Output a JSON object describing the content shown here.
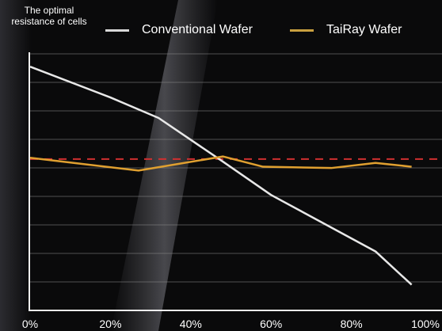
{
  "chart_data": {
    "type": "line",
    "ylabel_lines": [
      "The optimal",
      "resistance of cells"
    ],
    "xlabel": "",
    "x_ticks": [
      "0%",
      "20%",
      "40%",
      "60%",
      "80%",
      "100%"
    ],
    "xlim": [
      0,
      100
    ],
    "ylim": [
      0,
      10
    ],
    "grid": true,
    "legend": "top",
    "series": [
      {
        "name": "Conventional Wafer",
        "color": "#e8e8e8",
        "x": [
          0,
          20,
          32,
          48,
          60,
          86,
          95
        ],
        "y": [
          9.5,
          8.3,
          7.5,
          5.8,
          4.5,
          2.3,
          1.0
        ]
      },
      {
        "name": "TaiRay Wafer",
        "color": "#e0a030",
        "x": [
          0,
          27,
          48,
          58,
          75,
          86,
          95
        ],
        "y": [
          5.95,
          5.45,
          6.0,
          5.6,
          5.55,
          5.75,
          5.6
        ]
      }
    ],
    "reference_line": {
      "y": 5.9,
      "color": "#d03030",
      "style": "dashed"
    }
  }
}
